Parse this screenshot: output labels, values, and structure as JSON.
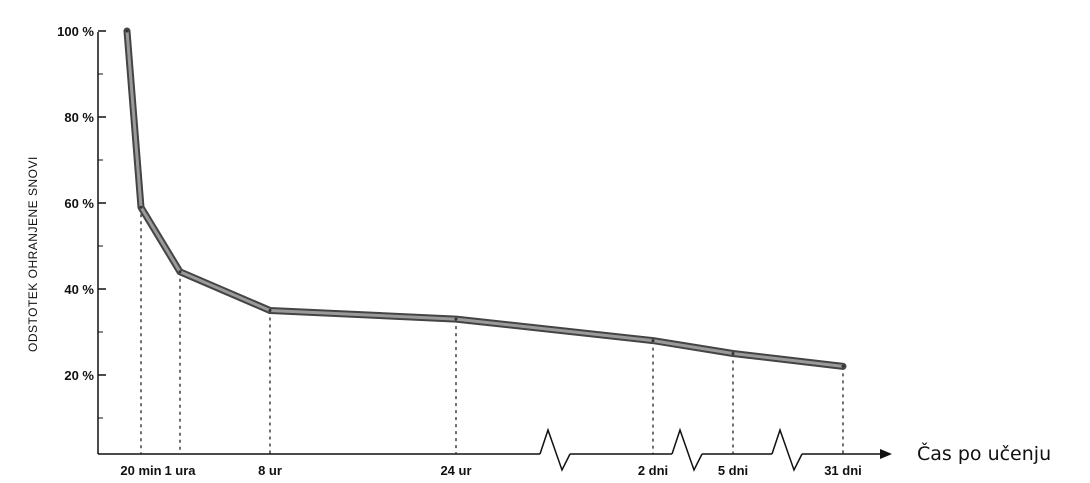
{
  "chart_data": {
    "type": "line",
    "title": "",
    "ylabel": "ODSTOTEK OHRANJENE SNOVI",
    "xlabel": "Čas po učenju",
    "ylim": [
      0,
      100
    ],
    "y_ticks": [
      "100 %",
      "80 %",
      "60 %",
      "40 %",
      "20 %"
    ],
    "y_tick_values": [
      100,
      80,
      60,
      40,
      20
    ],
    "x_categories": [
      "20 min",
      "1 ura",
      "8 ur",
      "24 ur",
      "2 dni",
      "5 dni",
      "31 dni"
    ],
    "start": {
      "label": "",
      "value": 100
    },
    "series": [
      {
        "values": [
          59,
          44,
          35,
          33,
          28,
          25,
          22
        ]
      }
    ],
    "axis_breaks": 3,
    "grid": false
  }
}
